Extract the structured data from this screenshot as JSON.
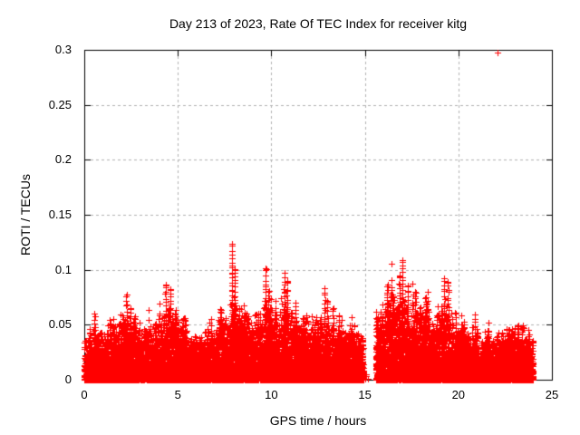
{
  "chart": {
    "title": "Day 213 of 2023, Rate Of TEC Index for receiver kitg",
    "xlabel": "GPS time / hours",
    "ylabel": "ROTI / TECUs"
  },
  "chart_data": {
    "type": "scatter",
    "title": "Day 213 of 2023, Rate Of TEC Index for receiver kitg",
    "xlabel": "GPS time / hours",
    "ylabel": "ROTI / TECUs",
    "xlim": [
      0,
      25
    ],
    "ylim": [
      0,
      0.3
    ],
    "xticks": [
      0,
      5,
      10,
      15,
      20,
      25
    ],
    "yticks": [
      0,
      0.05,
      0.1,
      0.15,
      0.2,
      0.25,
      0.3
    ],
    "xtick_labels": [
      "0",
      "5",
      "10",
      "15",
      "20",
      "25"
    ],
    "ytick_labels": [
      "0",
      "0.05",
      "0.1",
      "0.15",
      "0.2",
      "0.25",
      "0.3"
    ],
    "grid": "dashed",
    "legend": "none",
    "marker": "plus",
    "marker_color": "#ff0000",
    "grid_color": "#b2b2b2",
    "axis_color": "#000000",
    "background_color": "#ffffff",
    "data_start_hour": 0,
    "data_end_hour": 24,
    "gap_hours": [
      14.92,
      15.58
    ],
    "gap_stray_points": [
      [
        15.02,
        0.001
      ],
      [
        15.08,
        0.003
      ],
      [
        15.15,
        0.001
      ],
      [
        15.05,
        0.005
      ]
    ],
    "band_envelope": [
      [
        0,
        0.022
      ],
      [
        0.5,
        0.026
      ],
      [
        1,
        0.028
      ],
      [
        1.5,
        0.03
      ],
      [
        2,
        0.034
      ],
      [
        2.5,
        0.032
      ],
      [
        3,
        0.028
      ],
      [
        3.5,
        0.03
      ],
      [
        4,
        0.034
      ],
      [
        4.5,
        0.04
      ],
      [
        5,
        0.036
      ],
      [
        5.5,
        0.03
      ],
      [
        6,
        0.022
      ],
      [
        6.5,
        0.028
      ],
      [
        7,
        0.033
      ],
      [
        7.5,
        0.038
      ],
      [
        8,
        0.042
      ],
      [
        8.5,
        0.036
      ],
      [
        9,
        0.036
      ],
      [
        9.5,
        0.04
      ],
      [
        10,
        0.04
      ],
      [
        10.5,
        0.041
      ],
      [
        11,
        0.036
      ],
      [
        11.5,
        0.035
      ],
      [
        12,
        0.032
      ],
      [
        12.5,
        0.035
      ],
      [
        13,
        0.033
      ],
      [
        13.5,
        0.03
      ],
      [
        14,
        0.03
      ],
      [
        14.5,
        0.027
      ],
      [
        14.92,
        0.024
      ],
      [
        15.58,
        0.03
      ],
      [
        16,
        0.045
      ],
      [
        16.5,
        0.05
      ],
      [
        17,
        0.047
      ],
      [
        17.5,
        0.042
      ],
      [
        18,
        0.04
      ],
      [
        18.5,
        0.036
      ],
      [
        19,
        0.04
      ],
      [
        19.5,
        0.037
      ],
      [
        20,
        0.032
      ],
      [
        20.5,
        0.03
      ],
      [
        21,
        0.026
      ],
      [
        21.5,
        0.025
      ],
      [
        22,
        0.026
      ],
      [
        22.5,
        0.028
      ],
      [
        23,
        0.029
      ],
      [
        23.5,
        0.027
      ],
      [
        24,
        0.025
      ]
    ],
    "spikes": [
      [
        0.3,
        0.046
      ],
      [
        0.55,
        0.06
      ],
      [
        0.9,
        0.043
      ],
      [
        2.25,
        0.076
      ],
      [
        2.45,
        0.065
      ],
      [
        2.7,
        0.058
      ],
      [
        3.2,
        0.046
      ],
      [
        3.8,
        0.05
      ],
      [
        4.35,
        0.086
      ],
      [
        4.6,
        0.082
      ],
      [
        4.85,
        0.06
      ],
      [
        5.3,
        0.055
      ],
      [
        6.8,
        0.043
      ],
      [
        7.25,
        0.05
      ],
      [
        7.9,
        0.124
      ],
      [
        8.05,
        0.1
      ],
      [
        8.3,
        0.065
      ],
      [
        8.7,
        0.056
      ],
      [
        9.3,
        0.06
      ],
      [
        9.7,
        0.101
      ],
      [
        9.85,
        0.08
      ],
      [
        10.2,
        0.065
      ],
      [
        10.7,
        0.097
      ],
      [
        10.85,
        0.09
      ],
      [
        11.3,
        0.07
      ],
      [
        11.7,
        0.056
      ],
      [
        12.3,
        0.05
      ],
      [
        12.85,
        0.083
      ],
      [
        13.0,
        0.072
      ],
      [
        13.3,
        0.065
      ],
      [
        13.6,
        0.058
      ],
      [
        14.3,
        0.046
      ],
      [
        15.9,
        0.05
      ],
      [
        16.2,
        0.085
      ],
      [
        16.5,
        0.075
      ],
      [
        16.85,
        0.095
      ],
      [
        17.0,
        0.107
      ],
      [
        17.3,
        0.085
      ],
      [
        17.7,
        0.08
      ],
      [
        17.95,
        0.065
      ],
      [
        18.25,
        0.075
      ],
      [
        19.25,
        0.092
      ],
      [
        19.45,
        0.088
      ],
      [
        19.85,
        0.06
      ],
      [
        20.3,
        0.05
      ],
      [
        20.9,
        0.059
      ],
      [
        22.6,
        0.046
      ],
      [
        23.2,
        0.049
      ],
      [
        23.4,
        0.047
      ]
    ],
    "outliers": [
      [
        22.1,
        0.2975
      ]
    ],
    "seed": 213
  }
}
